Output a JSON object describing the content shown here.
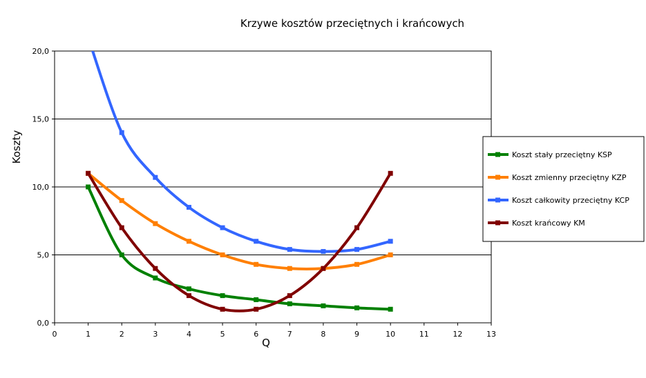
{
  "chart_data": {
    "type": "line",
    "title": "Krzywe kosztów przeciętnych i krańcowych",
    "xlabel": "Q",
    "ylabel": "Koszty",
    "xlim": [
      0,
      13
    ],
    "ylim": [
      0,
      20
    ],
    "x_ticks": [
      "0",
      "1",
      "2",
      "3",
      "4",
      "5",
      "6",
      "7",
      "8",
      "9",
      "10",
      "11",
      "12",
      "13"
    ],
    "y_ticks": [
      "0,0",
      "5,0",
      "10,0",
      "15,0",
      "20,0"
    ],
    "grid": "horizontal",
    "legend_position": "right",
    "x": [
      1,
      2,
      3,
      4,
      5,
      6,
      7,
      8,
      9,
      10
    ],
    "series": [
      {
        "name": "Koszt stały przeciętny KSP",
        "color": "#008000",
        "values": [
          10,
          5,
          3.3,
          2.5,
          2,
          1.7,
          1.4,
          1.25,
          1.1,
          1
        ]
      },
      {
        "name": "Koszt zmienny przeciętny KZP",
        "color": "#ff7f00",
        "values": [
          11,
          9,
          7.3,
          6,
          5,
          4.3,
          4,
          4,
          4.3,
          5
        ]
      },
      {
        "name": "Koszt całkowity przeciętny KCP",
        "color": "#3366ff",
        "values": [
          21,
          14,
          10.7,
          8.5,
          7,
          6,
          5.4,
          5.25,
          5.4,
          6
        ]
      },
      {
        "name": "Koszt krańcowy KM",
        "color": "#800000",
        "values": [
          11,
          7,
          4,
          2,
          1,
          1,
          2,
          4,
          7,
          11
        ]
      }
    ]
  }
}
